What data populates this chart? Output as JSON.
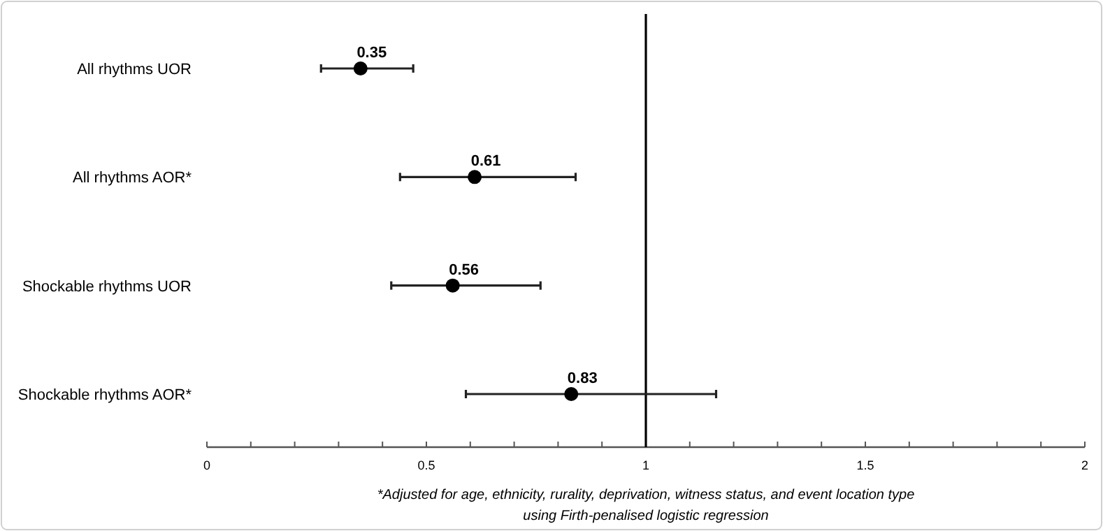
{
  "chart_data": {
    "type": "scatter",
    "orientation": "horizontal",
    "categories": [
      "All rhythms UOR",
      "All rhythms AOR*",
      "Shockable rhythms UOR",
      "Shockable rhythms AOR*"
    ],
    "values": [
      0.35,
      0.61,
      0.56,
      0.83
    ],
    "errors": [
      [
        0.26,
        0.47
      ],
      [
        0.44,
        0.84
      ],
      [
        0.42,
        0.76
      ],
      [
        0.59,
        1.16
      ]
    ],
    "color": "#000000",
    "marker": "circle",
    "data_labels": true,
    "xlim": [
      0,
      2
    ],
    "xticks": [
      0,
      {
        "value": 0.1,
        "label": null
      },
      {
        "value": 0.2,
        "label": null
      },
      {
        "value": 0.3,
        "label": null
      },
      {
        "value": 0.4,
        "label": null
      },
      0.5,
      {
        "value": 0.6,
        "label": null
      },
      {
        "value": 0.7,
        "label": null
      },
      {
        "value": 0.8,
        "label": null
      },
      {
        "value": 0.9,
        "label": null
      },
      1,
      {
        "value": 1.1,
        "label": null
      },
      {
        "value": 1.2,
        "label": null
      },
      {
        "value": 1.3,
        "label": null
      },
      {
        "value": 1.4,
        "label": null
      },
      1.5,
      {
        "value": 1.6,
        "label": null
      },
      {
        "value": 1.7,
        "label": null
      },
      {
        "value": 1.8,
        "label": null
      },
      {
        "value": 1.9,
        "label": null
      },
      2
    ],
    "ref_lines": [
      {
        "axis": "x",
        "value": 1,
        "color": "#000000"
      }
    ],
    "annotations": [
      "*Adjusted for age, ethnicity, rurality, deprivation, witness status, and event location type using Firth-penalised logistic regression"
    ]
  }
}
